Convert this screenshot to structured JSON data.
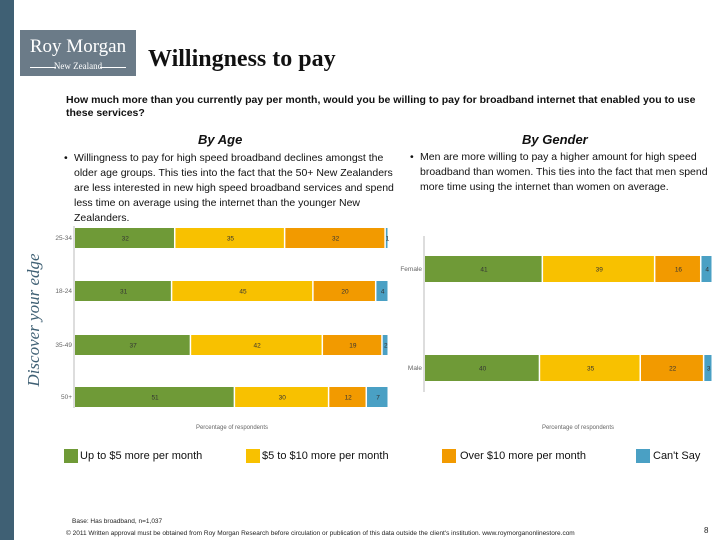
{
  "brand": {
    "name": "Roy Morgan",
    "sub": "New Zealand",
    "tagline": "Discover your edge"
  },
  "page": {
    "title": "Willingness to pay",
    "question": "How much more than you currently pay per month, would you be willing to pay for broadband internet that enabled you to use these services?",
    "by_age_title": "By Age",
    "by_gender_title": "By Gender",
    "age_bullet": "Willingness to pay for high speed broadband declines amongst the older age groups. This ties into the fact that the 50+ New Zealanders are less interested in new high speed broadband services and spend less time on average using the internet than the younger New Zealanders.",
    "gender_bullet": "Men are more willing to pay a higher amount for high speed broadband than women. This ties into the fact that men spend more time using the internet than women on average.",
    "base_note": "Base: Has broadband, n=1,037",
    "copyright": "© 2011 Written approval must be obtained from Roy Morgan Research before circulation or publication of this data outside the client's institution. www.roymorganonlinestore.com",
    "page_number": "8"
  },
  "colors": {
    "green": "#6f9a37",
    "yellow": "#f8c100",
    "orange": "#f29a00",
    "blue": "#4aa0c4",
    "sidebar": "#3f6074"
  },
  "legend": [
    {
      "label": "Up to $5 more per month",
      "color": "#6f9a37"
    },
    {
      "label": "$5 to $10 more per month",
      "color": "#f8c100"
    },
    {
      "label": "Over $10 more per month",
      "color": "#f29a00"
    },
    {
      "label": "Can't Say",
      "color": "#4aa0c4"
    }
  ],
  "chart_data": [
    {
      "type": "bar",
      "orientation": "horizontal",
      "stacked": true,
      "categories": [
        "25-34",
        "18-24",
        "35-49",
        "50+"
      ],
      "series": [
        {
          "name": "Up to $5 more per month",
          "values": [
            32,
            31,
            37,
            51
          ]
        },
        {
          "name": "$5 to $10 more per month",
          "values": [
            35,
            45,
            42,
            30
          ]
        },
        {
          "name": "Over $10 more per month",
          "values": [
            32,
            20,
            19,
            12
          ]
        },
        {
          "name": "Can't Say",
          "values": [
            1,
            4,
            2,
            7
          ]
        }
      ],
      "xlabel": "Percentage of respondents",
      "xlim": [
        0,
        100
      ]
    },
    {
      "type": "bar",
      "orientation": "horizontal",
      "stacked": true,
      "categories": [
        "Female",
        "Male"
      ],
      "series": [
        {
          "name": "Up to $5 more per month",
          "values": [
            41,
            40
          ]
        },
        {
          "name": "$5 to $10 more per month",
          "values": [
            39,
            35
          ]
        },
        {
          "name": "Over $10 more per month",
          "values": [
            16,
            22
          ]
        },
        {
          "name": "Can't Say",
          "values": [
            4,
            3
          ]
        }
      ],
      "xlabel": "Percentage of respondents",
      "xlim": [
        0,
        100
      ]
    }
  ]
}
